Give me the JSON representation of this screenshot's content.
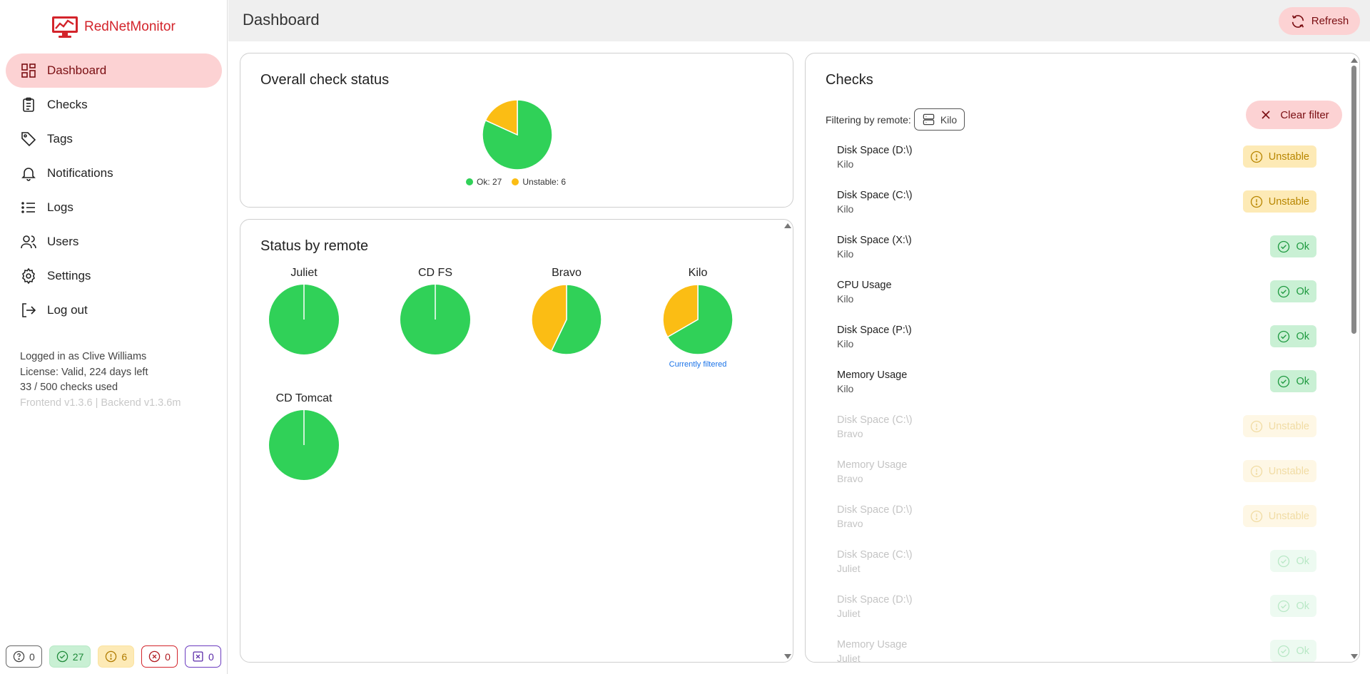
{
  "app": {
    "name": "RedNetMonitor"
  },
  "sidebar": {
    "items": [
      {
        "label": "Dashboard",
        "icon": "dashboard-icon",
        "active": true
      },
      {
        "label": "Checks",
        "icon": "clipboard-icon"
      },
      {
        "label": "Tags",
        "icon": "tag-icon"
      },
      {
        "label": "Notifications",
        "icon": "bell-icon"
      },
      {
        "label": "Logs",
        "icon": "list-icon"
      },
      {
        "label": "Users",
        "icon": "users-icon"
      },
      {
        "label": "Settings",
        "icon": "gear-icon"
      },
      {
        "label": "Log out",
        "icon": "logout-icon"
      }
    ],
    "user_line": "Logged in as Clive Williams",
    "license_line": "License: Valid, 224 days left",
    "usage_line": "33 / 500 checks used",
    "version_line": "Frontend v1.3.6 | Backend v1.3.6m",
    "counters": {
      "unknown": "0",
      "ok": "27",
      "unstable": "6",
      "error": "0",
      "other": "0"
    }
  },
  "header": {
    "title": "Dashboard",
    "refresh_label": "Refresh"
  },
  "colors": {
    "ok": "#30d158",
    "unstable": "#fbbd14",
    "accent": "#d3242b"
  },
  "overall": {
    "title": "Overall check status",
    "ok_legend": "Ok: 27",
    "unstable_legend": "Unstable: 6",
    "ok": 27,
    "unstable": 6
  },
  "by_remote": {
    "title": "Status by remote",
    "filtered_label": "Currently filtered",
    "remotes": [
      {
        "name": "Juliet",
        "ok": 3,
        "unstable": 0
      },
      {
        "name": "CD FS",
        "ok": 3,
        "unstable": 0
      },
      {
        "name": "Bravo",
        "ok": 4,
        "unstable": 3
      },
      {
        "name": "Kilo",
        "ok": 4,
        "unstable": 2,
        "filtered": true
      },
      {
        "name": "CD Tomcat",
        "ok": 3,
        "unstable": 0
      }
    ]
  },
  "checks": {
    "title": "Checks",
    "filter_prefix": "Filtering by remote:",
    "filter_value": "Kilo",
    "clear_label": "Clear filter",
    "rows": [
      {
        "name": "Disk Space (D:\\)",
        "remote": "Kilo",
        "status": "Unstable",
        "dim": false
      },
      {
        "name": "Disk Space (C:\\)",
        "remote": "Kilo",
        "status": "Unstable",
        "dim": false
      },
      {
        "name": "Disk Space (X:\\)",
        "remote": "Kilo",
        "status": "Ok",
        "dim": false
      },
      {
        "name": "CPU Usage",
        "remote": "Kilo",
        "status": "Ok",
        "dim": false
      },
      {
        "name": "Disk Space (P:\\)",
        "remote": "Kilo",
        "status": "Ok",
        "dim": false
      },
      {
        "name": "Memory Usage",
        "remote": "Kilo",
        "status": "Ok",
        "dim": false
      },
      {
        "name": "Disk Space (C:\\)",
        "remote": "Bravo",
        "status": "Unstable",
        "dim": true
      },
      {
        "name": "Memory Usage",
        "remote": "Bravo",
        "status": "Unstable",
        "dim": true
      },
      {
        "name": "Disk Space (D:\\)",
        "remote": "Bravo",
        "status": "Unstable",
        "dim": true
      },
      {
        "name": "Disk Space (C:\\)",
        "remote": "Juliet",
        "status": "Ok",
        "dim": true
      },
      {
        "name": "Disk Space (D:\\)",
        "remote": "Juliet",
        "status": "Ok",
        "dim": true
      },
      {
        "name": "Memory Usage",
        "remote": "Juliet",
        "status": "Ok",
        "dim": true
      }
    ]
  }
}
